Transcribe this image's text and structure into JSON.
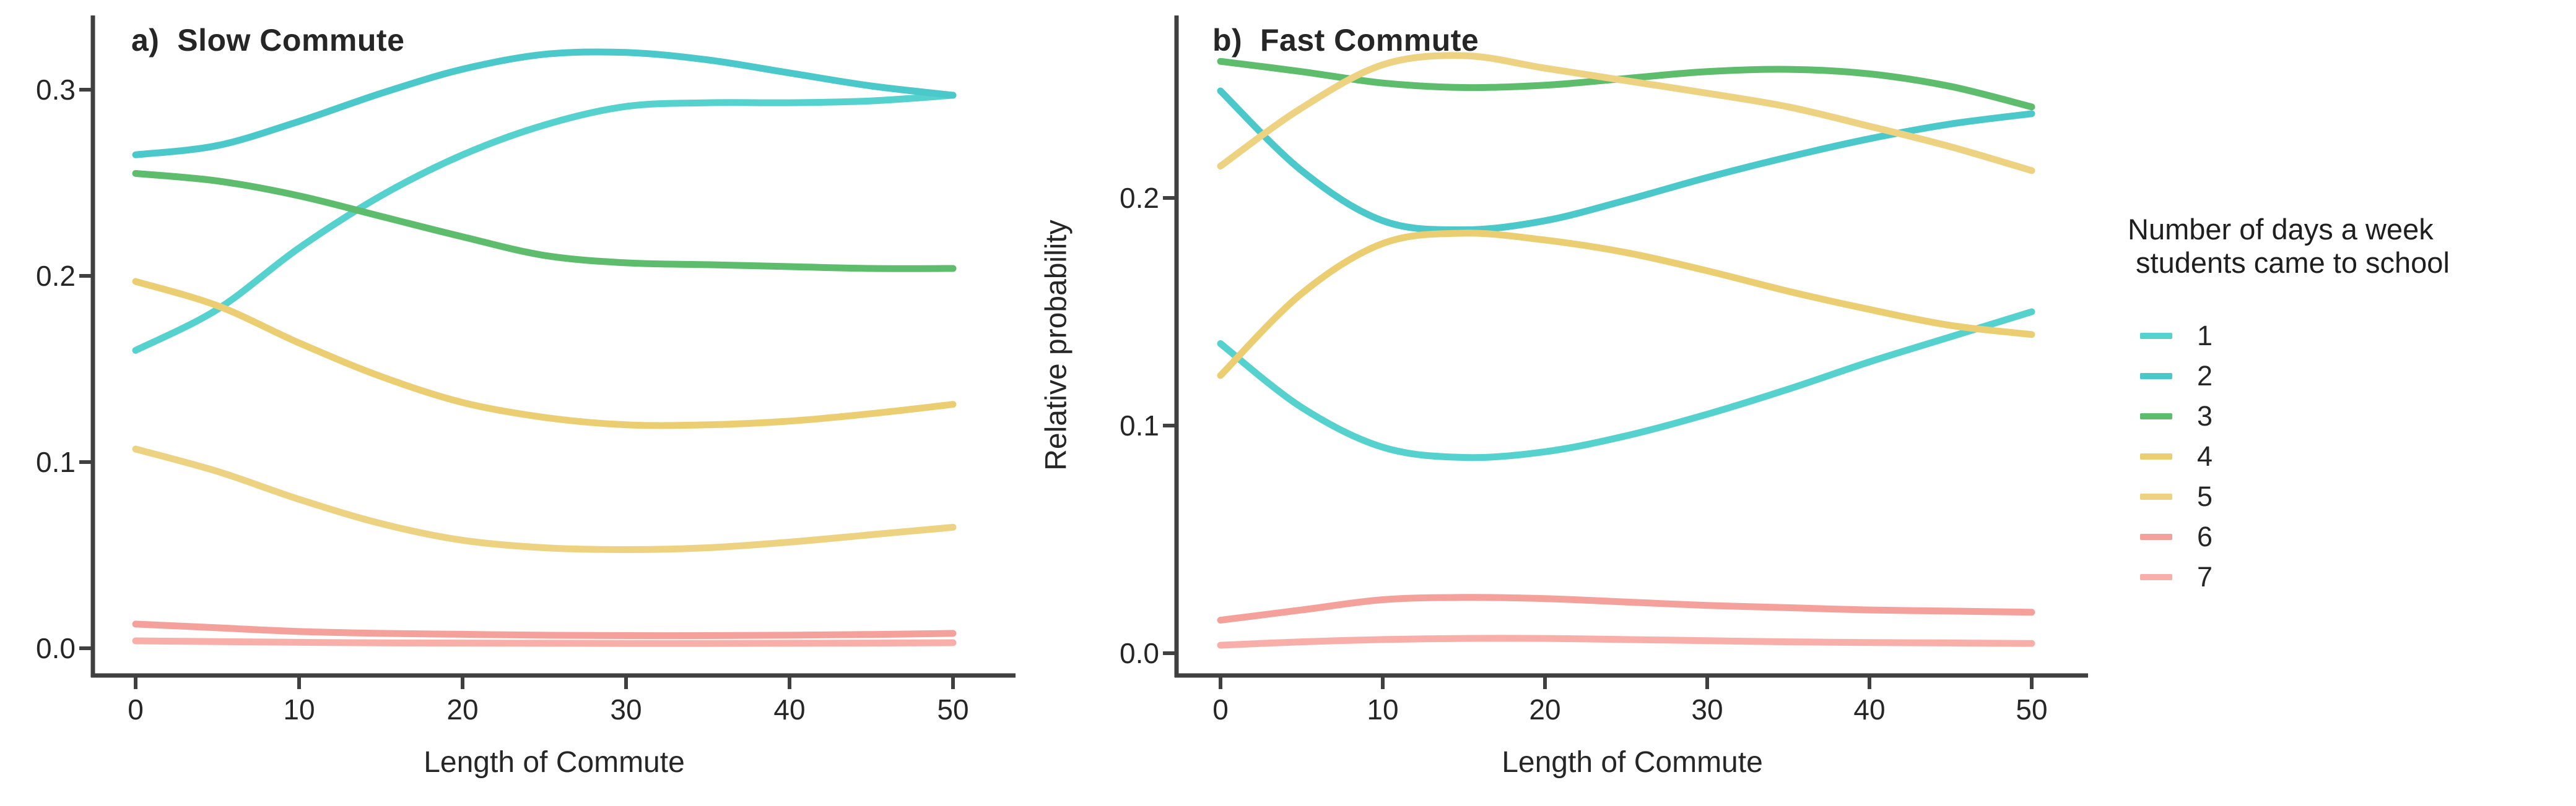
{
  "figure": {
    "background": "#ffffff"
  },
  "y_axis_label": "Relative probability",
  "panels": [
    {
      "id": "a",
      "title": "a)  Slow Commute",
      "x_axis_label": "Length of Commute"
    },
    {
      "id": "b",
      "title": "b)  Fast Commute",
      "x_axis_label": "Length of Commute"
    }
  ],
  "legend": {
    "title_line1": "Number of days a week",
    "title_line2": " students came to school",
    "items": [
      {
        "label": "1",
        "color": "#55D1CE"
      },
      {
        "label": "2",
        "color": "#4AC8CA"
      },
      {
        "label": "3",
        "color": "#5EBD6D"
      },
      {
        "label": "4",
        "color": "#ECCE72"
      },
      {
        "label": "5",
        "color": "#EDD282"
      },
      {
        "label": "6",
        "color": "#F5A19B"
      },
      {
        "label": "7",
        "color": "#F8AFAA"
      }
    ]
  },
  "colors": {
    "axis": "#404040",
    "text": "#262626",
    "series": {
      "1": "#55D1CE",
      "2": "#4AC8CA",
      "3": "#5EBD6D",
      "4": "#ECCE72",
      "5": "#EDD282",
      "6": "#F5A19B",
      "7": "#F8AFAA"
    }
  },
  "chart_data": [
    {
      "type": "line",
      "title": "a)  Slow Commute",
      "xlabel": "Length of Commute",
      "ylabel": "Relative probability",
      "legend_position": "right",
      "grid": false,
      "x": [
        0,
        5,
        10,
        15,
        20,
        25,
        30,
        35,
        40,
        45,
        50
      ],
      "xticks": [
        0,
        10,
        20,
        30,
        40,
        50
      ],
      "xtick_labels": [
        "0",
        "10",
        "20",
        "30",
        "40",
        "50"
      ],
      "yticks": [
        0.0,
        0.1,
        0.2,
        0.3
      ],
      "ytick_labels": [
        "0.0",
        "0.1",
        "0.2",
        "0.3"
      ],
      "xlim": [
        -2.6,
        53.8
      ],
      "ylim": [
        0,
        0.345
      ],
      "series": [
        {
          "name": "1",
          "values": [
            0.16,
            0.182,
            0.215,
            0.243,
            0.265,
            0.281,
            0.291,
            0.293,
            0.293,
            0.294,
            0.297
          ]
        },
        {
          "name": "2",
          "values": [
            0.265,
            0.27,
            0.283,
            0.298,
            0.311,
            0.319,
            0.32,
            0.316,
            0.309,
            0.302,
            0.297
          ]
        },
        {
          "name": "3",
          "values": [
            0.255,
            0.251,
            0.243,
            0.232,
            0.221,
            0.211,
            0.207,
            0.206,
            0.205,
            0.204,
            0.204
          ]
        },
        {
          "name": "4",
          "values": [
            0.197,
            0.184,
            0.164,
            0.146,
            0.132,
            0.124,
            0.12,
            0.12,
            0.122,
            0.126,
            0.131
          ]
        },
        {
          "name": "5",
          "values": [
            0.107,
            0.095,
            0.08,
            0.067,
            0.058,
            0.054,
            0.053,
            0.054,
            0.057,
            0.061,
            0.065
          ]
        },
        {
          "name": "6",
          "values": [
            0.013,
            0.011,
            0.009,
            0.008,
            0.0075,
            0.007,
            0.0068,
            0.0068,
            0.007,
            0.0074,
            0.008
          ]
        },
        {
          "name": "7",
          "values": [
            0.004,
            0.0036,
            0.0032,
            0.0029,
            0.0028,
            0.0027,
            0.0026,
            0.0026,
            0.0027,
            0.0028,
            0.003
          ]
        }
      ]
    },
    {
      "type": "line",
      "title": "b)  Fast Commute",
      "xlabel": "Length of Commute",
      "ylabel": "Relative probability",
      "legend_position": "right",
      "grid": false,
      "x": [
        0,
        5,
        10,
        15,
        20,
        25,
        30,
        35,
        40,
        45,
        50
      ],
      "xticks": [
        0,
        10,
        20,
        30,
        40,
        50
      ],
      "xtick_labels": [
        "0",
        "10",
        "20",
        "30",
        "40",
        "50"
      ],
      "yticks": [
        0.0,
        0.1,
        0.2
      ],
      "ytick_labels": [
        "0.0",
        "0.1",
        "0.2"
      ],
      "xlim": [
        -2.7,
        53.5
      ],
      "ylim": [
        0,
        0.285
      ],
      "series": [
        {
          "name": "1",
          "values": [
            0.136,
            0.108,
            0.0905,
            0.086,
            0.0885,
            0.0955,
            0.105,
            0.116,
            0.128,
            0.139,
            0.15
          ]
        },
        {
          "name": "2",
          "values": [
            0.247,
            0.212,
            0.19,
            0.186,
            0.19,
            0.199,
            0.209,
            0.218,
            0.226,
            0.2325,
            0.237
          ]
        },
        {
          "name": "3",
          "values": [
            0.26,
            0.2555,
            0.2505,
            0.2485,
            0.2495,
            0.2525,
            0.2555,
            0.2565,
            0.2545,
            0.249,
            0.24
          ]
        },
        {
          "name": "4",
          "values": [
            0.122,
            0.158,
            0.18,
            0.1845,
            0.1815,
            0.176,
            0.168,
            0.159,
            0.151,
            0.144,
            0.14
          ]
        },
        {
          "name": "5",
          "values": [
            0.214,
            0.2395,
            0.2585,
            0.2625,
            0.257,
            0.2515,
            0.246,
            0.24,
            0.2315,
            0.2225,
            0.212
          ]
        },
        {
          "name": "6",
          "values": [
            0.0145,
            0.019,
            0.0235,
            0.0245,
            0.024,
            0.0225,
            0.021,
            0.02,
            0.019,
            0.0185,
            0.018
          ]
        },
        {
          "name": "7",
          "values": [
            0.0035,
            0.005,
            0.006,
            0.0065,
            0.0065,
            0.006,
            0.0055,
            0.005,
            0.0047,
            0.0045,
            0.0043
          ]
        }
      ]
    }
  ]
}
